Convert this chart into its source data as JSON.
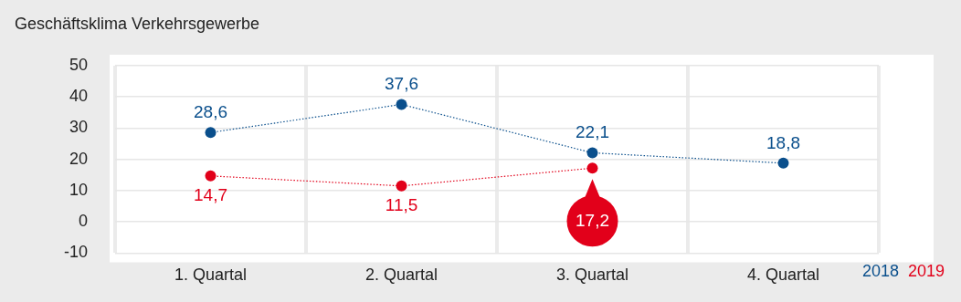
{
  "chart_data": {
    "type": "line",
    "title": "Geschäftsklima Verkehrsgewerbe",
    "categories": [
      "1. Quartal",
      "2. Quartal",
      "3. Quartal",
      "4. Quartal"
    ],
    "series": [
      {
        "name": "2018",
        "color": "#0a4f8c",
        "values": [
          28.6,
          37.6,
          22.1,
          18.8
        ],
        "value_labels": [
          "28,6",
          "37,6",
          "22,1",
          "18,8"
        ]
      },
      {
        "name": "2019",
        "color": "#e2001a",
        "values": [
          14.7,
          11.5,
          17.2,
          null
        ],
        "value_labels": [
          "14,7",
          "11,5",
          "17,2",
          null
        ]
      }
    ],
    "ylim": [
      -10,
      50
    ],
    "yticks": [
      {
        "value": -10,
        "label": "-10"
      },
      0,
      10,
      20,
      30,
      40,
      50
    ],
    "grid": true,
    "legend": "bottom right",
    "marker": "circle",
    "line_style": "dotted"
  }
}
